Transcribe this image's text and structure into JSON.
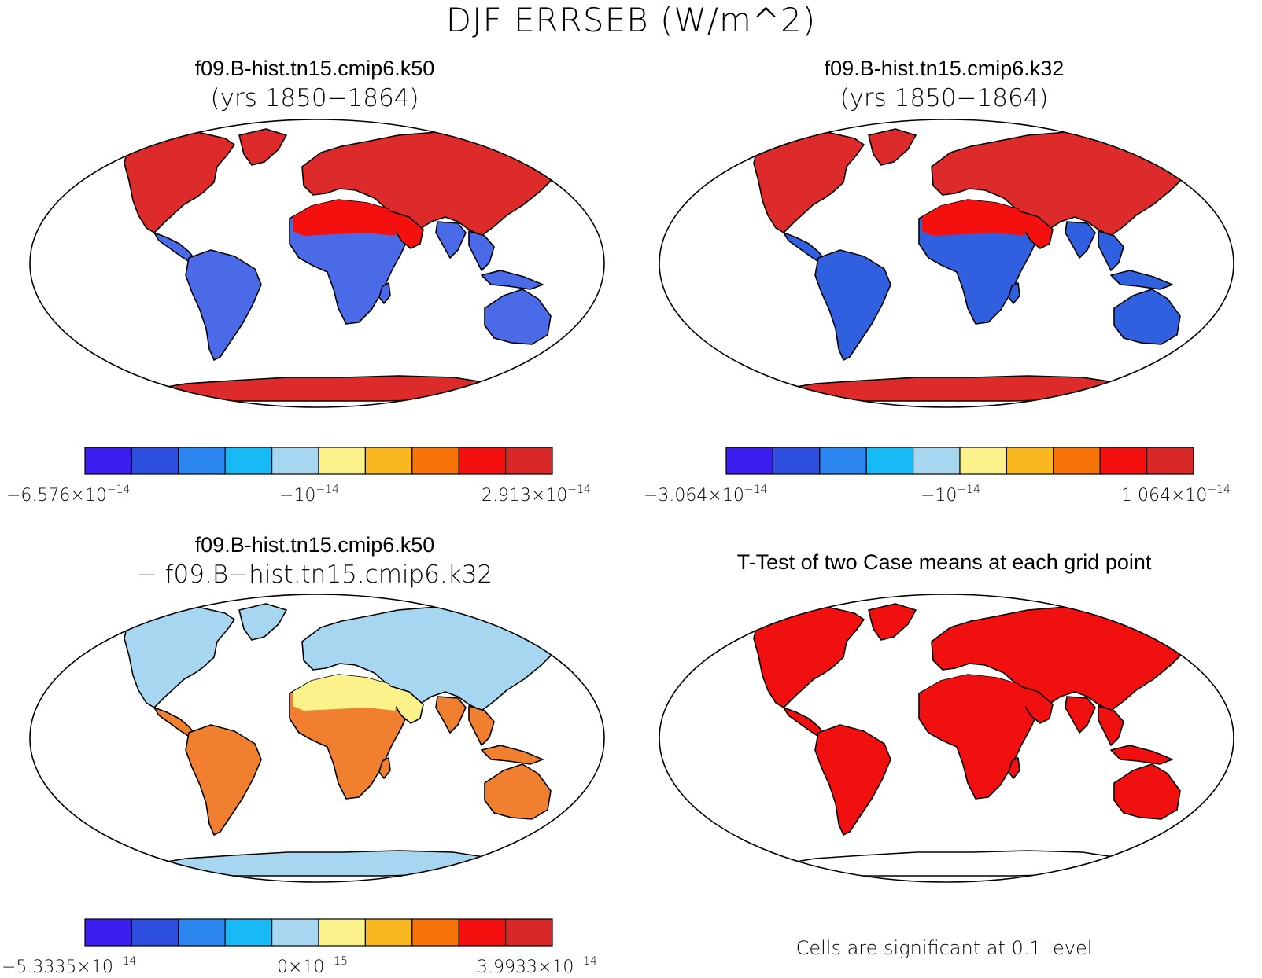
{
  "title": "DJF ERRSEB (W/m^2)",
  "panels": [
    {
      "id": "k50",
      "title": "f09.B-hist.tn15.cmip6.k50",
      "subtitle": "(yrs 1850−1864)",
      "colorbar": {
        "labels": [
          {
            "mant": "−6.576×10",
            "exp": "−14"
          },
          {
            "mant": "−10",
            "exp": "−14"
          },
          {
            "mant": "2.913×10",
            "exp": "−14"
          }
        ]
      }
    },
    {
      "id": "k32",
      "title": "f09.B-hist.tn15.cmip6.k32",
      "subtitle": "(yrs 1850−1864)",
      "colorbar": {
        "labels": [
          {
            "mant": "−3.064×10",
            "exp": "−14"
          },
          {
            "mant": "−10",
            "exp": "−14"
          },
          {
            "mant": "1.064×10",
            "exp": "−14"
          }
        ]
      }
    },
    {
      "id": "diff",
      "title": "f09.B-hist.tn15.cmip6.k50",
      "subtitle": "− f09.B−hist.tn15.cmip6.k32",
      "colorbar": {
        "labels": [
          {
            "mant": "−5.3335×10",
            "exp": "−14"
          },
          {
            "mant": "0×10",
            "exp": "−15"
          },
          {
            "mant": "3.9933×10",
            "exp": "−14"
          }
        ]
      }
    },
    {
      "id": "ttest",
      "title": "T-Test of two Case means at each grid point",
      "note": "Cells are significant at 0.1 level"
    }
  ],
  "palette": [
    "#3a1ef0",
    "#2c4fe0",
    "#2b86f0",
    "#18baf5",
    "#a6d6f0",
    "#fbf28c",
    "#f9b820",
    "#f87408",
    "#f51010",
    "#d82828"
  ],
  "land_colors": {
    "k50": {
      "north": "#dd2a2a",
      "mid": "#f51010",
      "tropics": "#4a6ae8",
      "antarctica": "#dd2a2a"
    },
    "k32": {
      "north": "#dd2a2a",
      "mid": "#f51010",
      "tropics": "#3060e0",
      "antarctica": "#dd2a2a"
    },
    "diff": {
      "north": "#a6d6f0",
      "mid": "#fbf28c",
      "tropics": "#f08030",
      "antarctica": "#a6d6f0"
    },
    "ttest": {
      "north": "#f01010",
      "mid": "#f01010",
      "tropics": "#f01010",
      "antarctica": "#ffffff"
    }
  }
}
